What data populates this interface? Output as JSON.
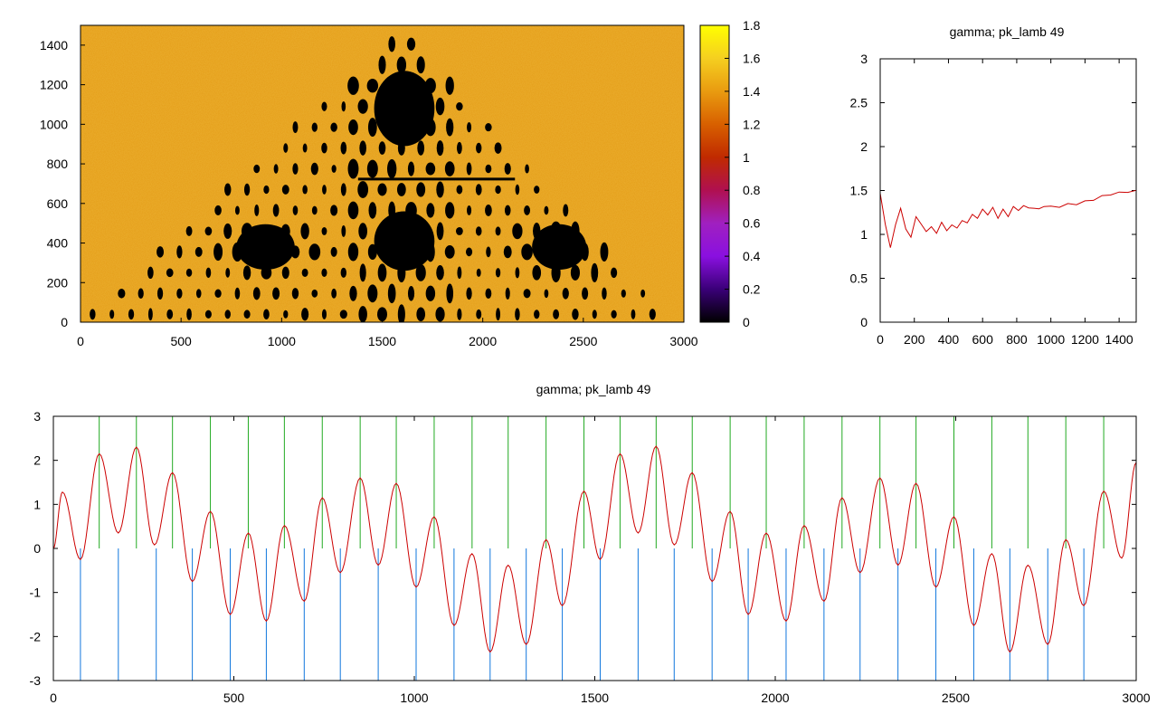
{
  "colors": {
    "red": "#cc0000",
    "green": "#22aa22",
    "blue": "#1177dd",
    "orange": "#e39a14",
    "black": "#000000"
  },
  "chart_data": [
    {
      "type": "heatmap",
      "title": "",
      "xlabel": "",
      "ylabel": "",
      "xlim": [
        0,
        3000
      ],
      "ylim": [
        0,
        1500
      ],
      "x_ticks": [
        "0",
        "500",
        "1000",
        "1500",
        "2000",
        "2500",
        "3000"
      ],
      "y_ticks": [
        "0",
        "200",
        "400",
        "600",
        "800",
        "1000",
        "1200",
        "1400"
      ],
      "colorbar": {
        "range": [
          0,
          1.8
        ],
        "ticks": [
          "0",
          "0.2",
          "0.4",
          "0.6",
          "0.8",
          "1",
          "1.2",
          "1.4",
          "1.6",
          "1.8"
        ],
        "palette": [
          "#000000",
          "#3a0078",
          "#8a10e0",
          "#a020c0",
          "#b01050",
          "#c02a00",
          "#d86000",
          "#e99b10",
          "#f5cf20",
          "#ffff00"
        ]
      },
      "background_value": 1.5,
      "zero_region": "triangular region apex at x=1600,y=1480; black blobs where value = 0"
    },
    {
      "type": "line",
      "title": "gamma; pk_lamb 49",
      "xlabel": "",
      "ylabel": "",
      "xlim": [
        0,
        1500
      ],
      "ylim": [
        0,
        3
      ],
      "x_ticks": [
        "0",
        "200",
        "400",
        "600",
        "800",
        "1000",
        "1200",
        "1400"
      ],
      "y_ticks": [
        "0",
        "0.5",
        "1",
        "1.5",
        "2",
        "2.5",
        "3"
      ],
      "series": [
        {
          "name": "gamma",
          "color": "#cc0000",
          "x": [
            0,
            30,
            60,
            90,
            120,
            150,
            180,
            210,
            240,
            270,
            300,
            330,
            360,
            390,
            420,
            450,
            480,
            510,
            540,
            570,
            600,
            630,
            660,
            690,
            720,
            750,
            780,
            810,
            840,
            870,
            900,
            930,
            960,
            1000,
            1050,
            1100,
            1150,
            1200,
            1250,
            1300,
            1350,
            1400,
            1450,
            1500
          ],
          "y": [
            1.48,
            1.1,
            0.86,
            1.1,
            1.31,
            1.05,
            0.98,
            1.19,
            1.13,
            1.02,
            1.1,
            1.0,
            1.15,
            1.03,
            1.12,
            1.06,
            1.17,
            1.12,
            1.24,
            1.17,
            1.3,
            1.21,
            1.32,
            1.17,
            1.3,
            1.19,
            1.33,
            1.26,
            1.34,
            1.29,
            1.31,
            1.28,
            1.33,
            1.31,
            1.32,
            1.34,
            1.35,
            1.37,
            1.4,
            1.43,
            1.46,
            1.47,
            1.49,
            1.49
          ]
        }
      ]
    },
    {
      "type": "line",
      "title": "gamma; pk_lamb 49",
      "xlabel": "",
      "ylabel": "",
      "xlim": [
        0,
        3000
      ],
      "ylim": [
        -3,
        3
      ],
      "x_ticks": [
        "0",
        "500",
        "1000",
        "1500",
        "2000",
        "2500",
        "3000"
      ],
      "y_ticks": [
        "-3",
        "-2",
        "-1",
        "0",
        "1",
        "2",
        "3"
      ],
      "series": [
        {
          "name": "gamma",
          "color": "#cc0000",
          "extrema": [
            [
              0,
              0
            ],
            [
              25,
              1.28
            ],
            [
              75,
              -0.25
            ],
            [
              127,
              2.15
            ],
            [
              180,
              0.35
            ],
            [
              230,
              2.3
            ],
            [
              280,
              0.08
            ],
            [
              330,
              1.72
            ],
            [
              385,
              -0.75
            ],
            [
              435,
              0.84
            ],
            [
              490,
              -1.5
            ],
            [
              540,
              0.35
            ],
            [
              590,
              -1.65
            ],
            [
              640,
              0.52
            ],
            [
              695,
              -1.2
            ],
            [
              745,
              1.15
            ],
            [
              795,
              -0.55
            ],
            [
              850,
              1.6
            ],
            [
              900,
              -0.38
            ],
            [
              950,
              1.48
            ],
            [
              1005,
              -0.88
            ],
            [
              1055,
              0.72
            ],
            [
              1110,
              -1.75
            ],
            [
              1160,
              -0.12
            ],
            [
              1210,
              -2.35
            ],
            [
              1260,
              -0.38
            ],
            [
              1310,
              -2.18
            ],
            [
              1365,
              0.2
            ],
            [
              1410,
              -1.3
            ],
            [
              1470,
              1.3
            ],
            [
              1515,
              -0.25
            ],
            [
              1570,
              2.15
            ],
            [
              1620,
              0.35
            ],
            [
              1670,
              2.32
            ],
            [
              1720,
              0.08
            ],
            [
              1770,
              1.72
            ],
            [
              1825,
              -0.75
            ],
            [
              1875,
              0.84
            ],
            [
              1925,
              -1.5
            ],
            [
              1975,
              0.35
            ],
            [
              2030,
              -1.65
            ],
            [
              2080,
              0.52
            ],
            [
              2135,
              -1.2
            ],
            [
              2185,
              1.15
            ],
            [
              2235,
              -0.55
            ],
            [
              2290,
              1.6
            ],
            [
              2340,
              -0.38
            ],
            [
              2390,
              1.48
            ],
            [
              2445,
              -0.88
            ],
            [
              2495,
              0.72
            ],
            [
              2550,
              -1.75
            ],
            [
              2600,
              -0.12
            ],
            [
              2650,
              -2.35
            ],
            [
              2700,
              -0.38
            ],
            [
              2755,
              -2.18
            ],
            [
              2805,
              0.2
            ],
            [
              2855,
              -1.3
            ],
            [
              2910,
              1.3
            ],
            [
              2960,
              -0.22
            ],
            [
              3000,
              1.95
            ]
          ]
        },
        {
          "name": "peaks",
          "color": "#22aa22",
          "x": [
            127,
            230,
            330,
            435,
            540,
            640,
            745,
            850,
            950,
            1055,
            1160,
            1260,
            1365,
            1470,
            1570,
            1670,
            1770,
            1875,
            1975,
            2080,
            2185,
            2290,
            2390,
            2495,
            2600,
            2700,
            2805,
            2910
          ],
          "y_range": [
            0,
            3
          ]
        },
        {
          "name": "troughs",
          "color": "#1177dd",
          "x": [
            75,
            180,
            285,
            385,
            490,
            590,
            695,
            795,
            900,
            1005,
            1110,
            1210,
            1310,
            1410,
            1515,
            1620,
            1720,
            1825,
            1925,
            2030,
            2135,
            2235,
            2340,
            2445,
            2550,
            2650,
            2755,
            2855
          ],
          "y_range": [
            -3,
            0
          ]
        }
      ]
    }
  ]
}
